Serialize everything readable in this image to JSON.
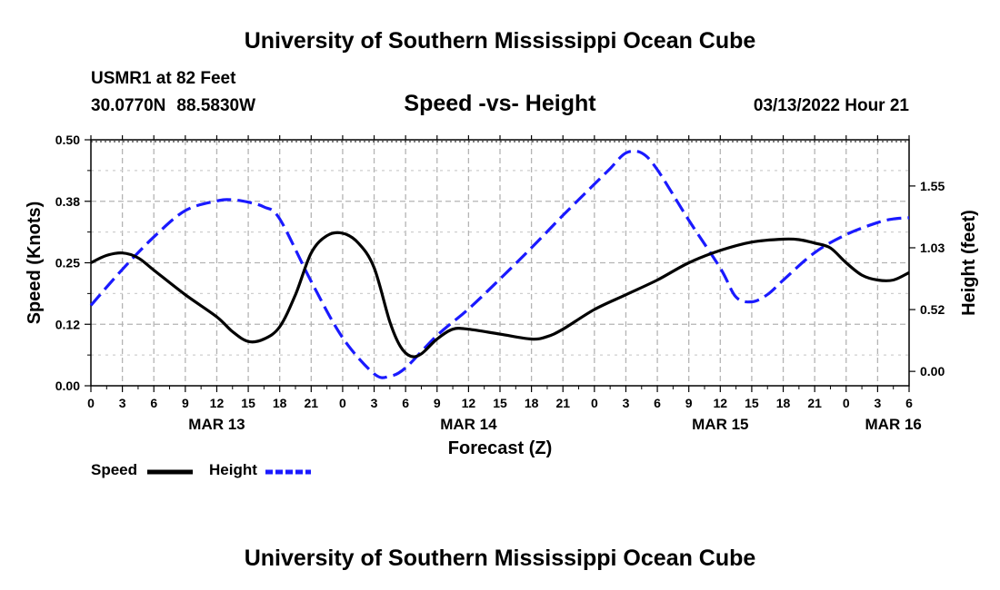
{
  "header": {
    "title": "University of Southern Mississippi Ocean Cube",
    "station": "USMR1 at 82 Feet",
    "latitude": "30.0770N",
    "longitude": "88.5830W",
    "subtitle": "Speed -vs- Height",
    "datetime": "03/13/2022 Hour 21"
  },
  "footer": {
    "title": "University of Southern Mississippi Ocean Cube"
  },
  "chart_data": {
    "type": "line",
    "title": "Speed -vs- Height",
    "xlabel": "Forecast (Z)",
    "ylabel": "Speed (Knots)",
    "y2label": "Height (feet)",
    "xlim": [
      0,
      78
    ],
    "ylim": [
      0,
      0.5
    ],
    "y2lim": [
      -0.12,
      1.93
    ],
    "grid": true,
    "left_ticks": [
      {
        "value": 0,
        "label": "0.00"
      },
      {
        "value": 0.125,
        "label": "0.12"
      },
      {
        "value": 0.25,
        "label": "0.25"
      },
      {
        "value": 0.375,
        "label": "0.38"
      },
      {
        "value": 0.5,
        "label": "0.50"
      }
    ],
    "right_ticks": [
      {
        "value": 0,
        "label": "0.00"
      },
      {
        "value": 0.515,
        "label": "0.52"
      },
      {
        "value": 1.03,
        "label": "1.03"
      },
      {
        "value": 1.545,
        "label": "1.55"
      }
    ],
    "x_ticks": [
      {
        "value": 0,
        "label": "0"
      },
      {
        "value": 3,
        "label": "3"
      },
      {
        "value": 6,
        "label": "6"
      },
      {
        "value": 9,
        "label": "9"
      },
      {
        "value": 12,
        "label": "12"
      },
      {
        "value": 15,
        "label": "15"
      },
      {
        "value": 18,
        "label": "18"
      },
      {
        "value": 21,
        "label": "21"
      },
      {
        "value": 24,
        "label": "0"
      },
      {
        "value": 27,
        "label": "3"
      },
      {
        "value": 30,
        "label": "6"
      },
      {
        "value": 33,
        "label": "9"
      },
      {
        "value": 36,
        "label": "12"
      },
      {
        "value": 39,
        "label": "15"
      },
      {
        "value": 42,
        "label": "18"
      },
      {
        "value": 45,
        "label": "21"
      },
      {
        "value": 48,
        "label": "0"
      },
      {
        "value": 51,
        "label": "3"
      },
      {
        "value": 54,
        "label": "6"
      },
      {
        "value": 57,
        "label": "9"
      },
      {
        "value": 60,
        "label": "12"
      },
      {
        "value": 63,
        "label": "15"
      },
      {
        "value": 66,
        "label": "18"
      },
      {
        "value": 69,
        "label": "21"
      },
      {
        "value": 72,
        "label": "0"
      },
      {
        "value": 75,
        "label": "3"
      },
      {
        "value": 78,
        "label": "6"
      }
    ],
    "date_labels": [
      {
        "value": 12,
        "label": "MAR 13"
      },
      {
        "value": 36,
        "label": "MAR 14"
      },
      {
        "value": 60,
        "label": "MAR 15"
      },
      {
        "value": 76.5,
        "label": "MAR 16"
      }
    ],
    "series": [
      {
        "name": "Speed",
        "axis": "left",
        "color": "#000000",
        "dash": "solid",
        "x": [
          0,
          1.5,
          3,
          4.5,
          6,
          9,
          12,
          13.5,
          15,
          16.5,
          18,
          19.5,
          21,
          22.5,
          24,
          25.5,
          27,
          28.5,
          29.5,
          30.5,
          31.5,
          33,
          34.5,
          36,
          39,
          42,
          43.5,
          45,
          48,
          51,
          54,
          57,
          60,
          63,
          66,
          67.5,
          69,
          70.5,
          72,
          73.5,
          75,
          76.5,
          78
        ],
        "y": [
          0.25,
          0.265,
          0.27,
          0.26,
          0.235,
          0.185,
          0.14,
          0.11,
          0.09,
          0.095,
          0.12,
          0.185,
          0.27,
          0.305,
          0.31,
          0.29,
          0.24,
          0.13,
          0.08,
          0.06,
          0.065,
          0.095,
          0.115,
          0.115,
          0.105,
          0.095,
          0.1,
          0.115,
          0.155,
          0.185,
          0.215,
          0.25,
          0.275,
          0.292,
          0.298,
          0.297,
          0.29,
          0.28,
          0.25,
          0.225,
          0.215,
          0.215,
          0.23
        ]
      },
      {
        "name": "Height",
        "axis": "right",
        "color": "#1a1aff",
        "dash": "dashed",
        "x": [
          0,
          3,
          6,
          9,
          12,
          13.5,
          15,
          16.5,
          18,
          21,
          24,
          27,
          28.5,
          30,
          33,
          36,
          39,
          42,
          45,
          48,
          49.5,
          51,
          52.5,
          54,
          57,
          60,
          61.5,
          63,
          64.5,
          66,
          69,
          72,
          75,
          76.5,
          78
        ],
        "y": [
          0.55,
          0.85,
          1.12,
          1.34,
          1.42,
          1.43,
          1.41,
          1.37,
          1.27,
          0.75,
          0.28,
          -0.02,
          -0.04,
          0.03,
          0.3,
          0.52,
          0.77,
          1.03,
          1.3,
          1.56,
          1.69,
          1.82,
          1.82,
          1.68,
          1.26,
          0.86,
          0.62,
          0.58,
          0.64,
          0.76,
          0.99,
          1.14,
          1.24,
          1.27,
          1.28
        ]
      }
    ]
  }
}
